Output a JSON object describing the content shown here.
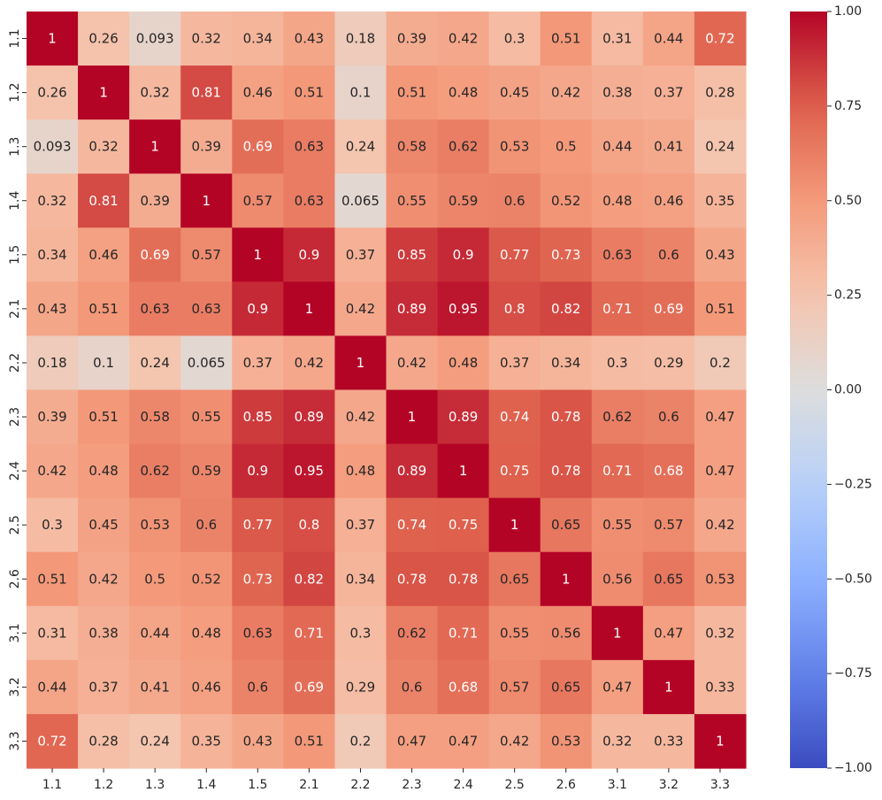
{
  "chart_data": {
    "type": "heatmap",
    "title": "",
    "xlabel": "",
    "ylabel": "",
    "x_labels": [
      "1.1",
      "1.2",
      "1.3",
      "1.4",
      "1.5",
      "2.1",
      "2.2",
      "2.3",
      "2.4",
      "2.5",
      "2.6",
      "3.1",
      "3.2",
      "3.3"
    ],
    "y_labels": [
      "1.1",
      "1.2",
      "1.3",
      "1.4",
      "1.5",
      "2.1",
      "2.2",
      "2.3",
      "2.4",
      "2.5",
      "2.6",
      "3.1",
      "3.2",
      "3.3"
    ],
    "values": [
      [
        1,
        0.26,
        0.093,
        0.32,
        0.34,
        0.43,
        0.18,
        0.39,
        0.42,
        0.3,
        0.51,
        0.31,
        0.44,
        0.72
      ],
      [
        0.26,
        1,
        0.32,
        0.81,
        0.46,
        0.51,
        0.1,
        0.51,
        0.48,
        0.45,
        0.42,
        0.38,
        0.37,
        0.28
      ],
      [
        0.093,
        0.32,
        1,
        0.39,
        0.69,
        0.63,
        0.24,
        0.58,
        0.62,
        0.53,
        0.5,
        0.44,
        0.41,
        0.24
      ],
      [
        0.32,
        0.81,
        0.39,
        1,
        0.57,
        0.63,
        0.065,
        0.55,
        0.59,
        0.6,
        0.52,
        0.48,
        0.46,
        0.35
      ],
      [
        0.34,
        0.46,
        0.69,
        0.57,
        1,
        0.9,
        0.37,
        0.85,
        0.9,
        0.77,
        0.73,
        0.63,
        0.6,
        0.43
      ],
      [
        0.43,
        0.51,
        0.63,
        0.63,
        0.9,
        1,
        0.42,
        0.89,
        0.95,
        0.8,
        0.82,
        0.71,
        0.69,
        0.51
      ],
      [
        0.18,
        0.1,
        0.24,
        0.065,
        0.37,
        0.42,
        1,
        0.42,
        0.48,
        0.37,
        0.34,
        0.3,
        0.29,
        0.2
      ],
      [
        0.39,
        0.51,
        0.58,
        0.55,
        0.85,
        0.89,
        0.42,
        1,
        0.89,
        0.74,
        0.78,
        0.62,
        0.6,
        0.47
      ],
      [
        0.42,
        0.48,
        0.62,
        0.59,
        0.9,
        0.95,
        0.48,
        0.89,
        1,
        0.75,
        0.78,
        0.71,
        0.68,
        0.47
      ],
      [
        0.3,
        0.45,
        0.53,
        0.6,
        0.77,
        0.8,
        0.37,
        0.74,
        0.75,
        1,
        0.65,
        0.55,
        0.57,
        0.42
      ],
      [
        0.51,
        0.42,
        0.5,
        0.52,
        0.73,
        0.82,
        0.34,
        0.78,
        0.78,
        0.65,
        1,
        0.56,
        0.65,
        0.53
      ],
      [
        0.31,
        0.38,
        0.44,
        0.48,
        0.63,
        0.71,
        0.3,
        0.62,
        0.71,
        0.55,
        0.56,
        1,
        0.47,
        0.32
      ],
      [
        0.44,
        0.37,
        0.41,
        0.46,
        0.6,
        0.69,
        0.29,
        0.6,
        0.68,
        0.57,
        0.65,
        0.47,
        1,
        0.33
      ],
      [
        0.72,
        0.28,
        0.24,
        0.35,
        0.43,
        0.51,
        0.2,
        0.47,
        0.47,
        0.42,
        0.53,
        0.32,
        0.33,
        1
      ]
    ],
    "cell_labels": [
      [
        "1",
        "0.26",
        "0.093",
        "0.32",
        "0.34",
        "0.43",
        "0.18",
        "0.39",
        "0.42",
        "0.3",
        "0.51",
        "0.31",
        "0.44",
        "0.72"
      ],
      [
        "0.26",
        "1",
        "0.32",
        "0.81",
        "0.46",
        "0.51",
        "0.1",
        "0.51",
        "0.48",
        "0.45",
        "0.42",
        "0.38",
        "0.37",
        "0.28"
      ],
      [
        "0.093",
        "0.32",
        "1",
        "0.39",
        "0.69",
        "0.63",
        "0.24",
        "0.58",
        "0.62",
        "0.53",
        "0.5",
        "0.44",
        "0.41",
        "0.24"
      ],
      [
        "0.32",
        "0.81",
        "0.39",
        "1",
        "0.57",
        "0.63",
        "0.065",
        "0.55",
        "0.59",
        "0.6",
        "0.52",
        "0.48",
        "0.46",
        "0.35"
      ],
      [
        "0.34",
        "0.46",
        "0.69",
        "0.57",
        "1",
        "0.9",
        "0.37",
        "0.85",
        "0.9",
        "0.77",
        "0.73",
        "0.63",
        "0.6",
        "0.43"
      ],
      [
        "0.43",
        "0.51",
        "0.63",
        "0.63",
        "0.9",
        "1",
        "0.42",
        "0.89",
        "0.95",
        "0.8",
        "0.82",
        "0.71",
        "0.69",
        "0.51"
      ],
      [
        "0.18",
        "0.1",
        "0.24",
        "0.065",
        "0.37",
        "0.42",
        "1",
        "0.42",
        "0.48",
        "0.37",
        "0.34",
        "0.3",
        "0.29",
        "0.2"
      ],
      [
        "0.39",
        "0.51",
        "0.58",
        "0.55",
        "0.85",
        "0.89",
        "0.42",
        "1",
        "0.89",
        "0.74",
        "0.78",
        "0.62",
        "0.6",
        "0.47"
      ],
      [
        "0.42",
        "0.48",
        "0.62",
        "0.59",
        "0.9",
        "0.95",
        "0.48",
        "0.89",
        "1",
        "0.75",
        "0.78",
        "0.71",
        "0.68",
        "0.47"
      ],
      [
        "0.3",
        "0.45",
        "0.53",
        "0.6",
        "0.77",
        "0.8",
        "0.37",
        "0.74",
        "0.75",
        "1",
        "0.65",
        "0.55",
        "0.57",
        "0.42"
      ],
      [
        "0.51",
        "0.42",
        "0.5",
        "0.52",
        "0.73",
        "0.82",
        "0.34",
        "0.78",
        "0.78",
        "0.65",
        "1",
        "0.56",
        "0.65",
        "0.53"
      ],
      [
        "0.31",
        "0.38",
        "0.44",
        "0.48",
        "0.63",
        "0.71",
        "0.3",
        "0.62",
        "0.71",
        "0.55",
        "0.56",
        "1",
        "0.47",
        "0.32"
      ],
      [
        "0.44",
        "0.37",
        "0.41",
        "0.46",
        "0.6",
        "0.69",
        "0.29",
        "0.6",
        "0.68",
        "0.57",
        "0.65",
        "0.47",
        "1",
        "0.33"
      ],
      [
        "0.72",
        "0.28",
        "0.24",
        "0.35",
        "0.43",
        "0.51",
        "0.2",
        "0.47",
        "0.47",
        "0.42",
        "0.53",
        "0.32",
        "0.33",
        "1"
      ]
    ],
    "colorbar": {
      "colormap": "coolwarm",
      "vmin": -1.0,
      "vmax": 1.0,
      "ticks": [
        1.0,
        0.75,
        0.5,
        0.25,
        0.0,
        -0.25,
        -0.5,
        -0.75,
        -1.0
      ],
      "tick_labels": [
        "1.00",
        "0.75",
        "0.50",
        "0.25",
        "0.00",
        "−0.25",
        "−0.50",
        "−0.75",
        "−1.00"
      ]
    },
    "colors": {
      "low": "#3b4cc0",
      "mid": "#dddcdc",
      "high": "#b40426",
      "text_dark": "#262626",
      "text_light": "#ffffff"
    },
    "grid": false,
    "legend": "colorbar-right"
  }
}
